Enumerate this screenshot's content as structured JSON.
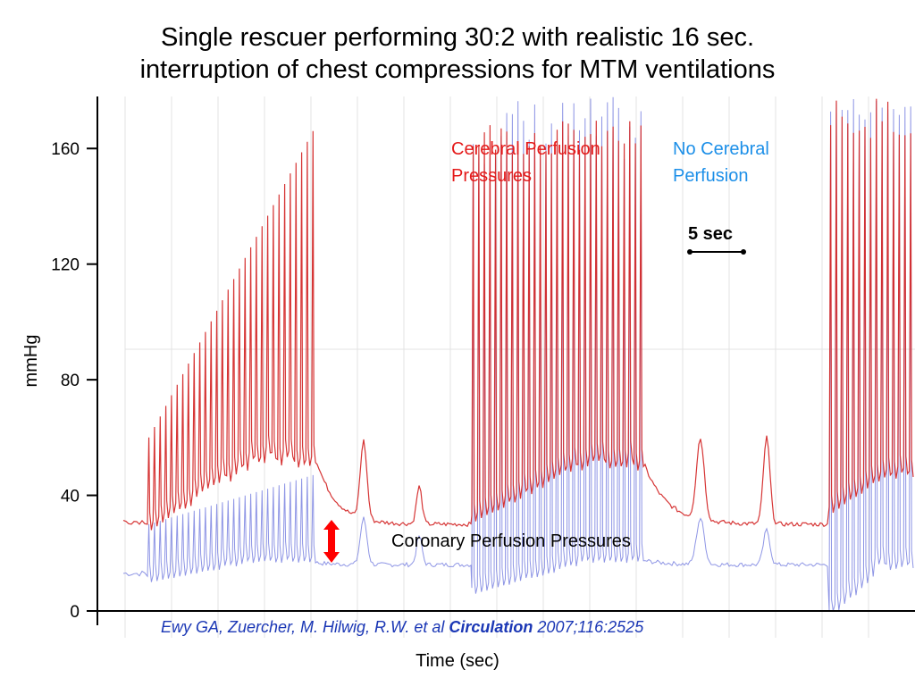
{
  "title_lines": [
    "Single rescuer performing 30:2 with realistic 16 sec.",
    "interruption of chest compressions for MTM ventilations"
  ],
  "chart_data": {
    "type": "line",
    "title": "Single rescuer performing 30:2 with realistic 16 sec. interruption of chest compressions for MTM ventilations",
    "xlabel": "Time (sec)",
    "ylabel": "mmHg",
    "ylim": [
      0,
      178
    ],
    "yticks": [
      0,
      40,
      80,
      120,
      160
    ],
    "ytick_labels": [
      "0",
      "40",
      "80",
      "120",
      "160"
    ],
    "grid": true,
    "colors": {
      "aortic": "#d42a2a",
      "venous": "#7a82e0",
      "annotation_red": "#e41a1a",
      "annotation_blue": "#1c8fe8",
      "citation": "#1b37b5"
    },
    "series": [
      {
        "color": "#d42a2a",
        "phases": [
          {
            "kind": "compression",
            "peak_range": [
              60,
              166
            ],
            "baseline_range": [
              30,
              57
            ]
          },
          {
            "kind": "pause",
            "baseline": 30,
            "ventilation_peaks": [
              57,
              43
            ]
          },
          {
            "kind": "compression",
            "peak_range": [
              130,
              170
            ],
            "baseline_range": [
              33,
              55
            ]
          },
          {
            "kind": "pause",
            "baseline": 30,
            "ventilation_peaks": [
              58,
              60
            ]
          },
          {
            "kind": "compression",
            "peak_range": [
              130,
              178
            ],
            "baseline_range": [
              36,
              50
            ]
          }
        ]
      },
      {
        "color": "#7a82e0",
        "phases": [
          {
            "kind": "compression",
            "peak_range": [
              30,
              47
            ],
            "baseline_range": [
              12,
              20
            ]
          },
          {
            "kind": "pause",
            "baseline": 16,
            "ventilation_peaks": [
              32,
              26
            ]
          },
          {
            "kind": "compression",
            "peak_range": [
              100,
              178
            ],
            "baseline_range": [
              8,
              20
            ]
          },
          {
            "kind": "pause",
            "baseline": 16,
            "ventilation_peaks": [
              32,
              28
            ]
          },
          {
            "kind": "compression",
            "peak_range": [
              150,
              178
            ],
            "baseline_range": [
              0,
              20
            ]
          }
        ]
      }
    ],
    "annotations": {
      "cerebral": [
        "Cerebral Perfusion",
        "Pressures"
      ],
      "no_cerebral": [
        "No Cerebral",
        "Perfusion"
      ],
      "scale_bar": "5 sec",
      "coronary": "Coronary Perfusion Pressures"
    }
  },
  "citation": {
    "authors": "Ewy GA, Zuercher, M. Hilwig, R.W. et al ",
    "journal": "Circulation",
    "ref": " 2007;116:2525"
  }
}
